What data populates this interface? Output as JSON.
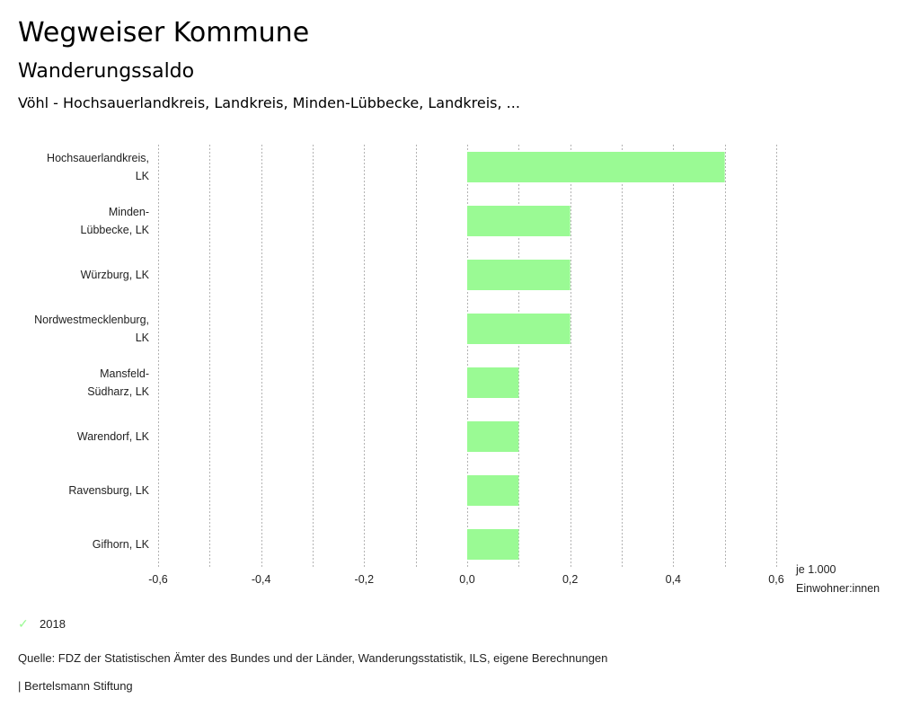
{
  "header": {
    "title": "Wegweiser Kommune",
    "subtitle": "Wanderungssaldo",
    "context": "Vöhl - Hochsauerlandkreis, Landkreis, Minden-Lübbecke, Landkreis, ..."
  },
  "chart_data": {
    "type": "bar",
    "orientation": "horizontal",
    "title": "Wanderungssaldo",
    "categories": [
      [
        "Hochsauerlandkreis,",
        "LK"
      ],
      [
        "Minden-",
        "Lübbecke, LK"
      ],
      [
        "Würzburg, LK"
      ],
      [
        "Nordwestmecklenburg,",
        "LK"
      ],
      [
        "Mansfeld-",
        "Südharz, LK"
      ],
      [
        "Warendorf, LK"
      ],
      [
        "Ravensburg, LK"
      ],
      [
        "Gifhorn, LK"
      ]
    ],
    "series": [
      {
        "name": "2018",
        "color": "#9afa94",
        "values": [
          0.5,
          0.2,
          0.2,
          0.2,
          0.1,
          0.1,
          0.1,
          0.1
        ]
      }
    ],
    "xlim": [
      -0.6,
      0.6
    ],
    "xticks": [
      -0.6,
      -0.4,
      -0.2,
      0.0,
      0.2,
      0.4,
      0.6
    ],
    "xtick_labels": [
      "-0,6",
      "-0,4",
      "-0,2",
      "0,0",
      "0,2",
      "0,4",
      "0,6"
    ],
    "gridlines": [
      -0.6,
      -0.5,
      -0.4,
      -0.3,
      -0.2,
      -0.1,
      0.0,
      0.1,
      0.2,
      0.3,
      0.4,
      0.5,
      0.6
    ],
    "grid": true,
    "xlabel": [
      "je 1.000",
      "Einwohner:innen"
    ],
    "ylabel": "",
    "legend": {
      "position": "bottom-left",
      "entries": [
        "2018"
      ]
    }
  },
  "legend": {
    "label": "2018",
    "icon": "check-icon",
    "color": "#9afa94"
  },
  "footer": {
    "source": "Quelle: FDZ der Statistischen Ämter des Bundes und der Länder, Wanderungsstatistik, ILS, eigene Berechnungen",
    "credit": "| Bertelsmann Stiftung"
  }
}
